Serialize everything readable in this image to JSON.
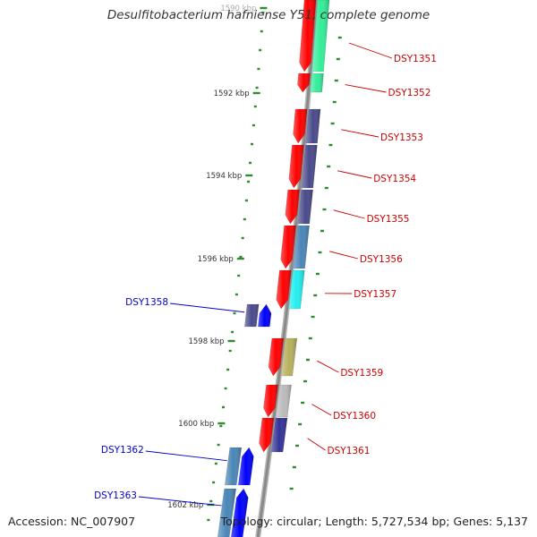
{
  "title": "Desulfitobacterium hafniense Y51, complete genome",
  "footer": {
    "accession": "Accession: NC_007907",
    "summary": "Topology: circular; Length: 5,727,534 bp; Genes: 5,137"
  },
  "colors": {
    "backbone": "#8a8a8a",
    "tick": "#2e8b2e",
    "forward_label": "#cc0000",
    "reverse_label": "#0000cc",
    "reverse_arrow": "#ff0000",
    "forward_arrow": "#0000ff"
  },
  "scale": {
    "ticks": [
      {
        "label": "1590 kbp"
      },
      {
        "label": "1592 kbp"
      },
      {
        "label": "1594 kbp"
      },
      {
        "label": "1596 kbp"
      },
      {
        "label": "1598 kbp"
      },
      {
        "label": "1600 kbp"
      },
      {
        "label": "1602 kbp"
      }
    ]
  },
  "genes": [
    {
      "id": "DSY1351",
      "strand": "forward",
      "cog_color": "#33ee99"
    },
    {
      "id": "DSY1352",
      "strand": "forward",
      "cog_color": "#33ee99"
    },
    {
      "id": "DSY1353",
      "strand": "forward",
      "cog_color": "#4a4a8c"
    },
    {
      "id": "DSY1354",
      "strand": "forward",
      "cog_color": "#4a4a8c"
    },
    {
      "id": "DSY1355",
      "strand": "forward",
      "cog_color": "#4a4a8c"
    },
    {
      "id": "DSY1356",
      "strand": "forward",
      "cog_color": "#4a86b8"
    },
    {
      "id": "DSY1357",
      "strand": "forward",
      "cog_color": "#22eeee"
    },
    {
      "id": "DSY1358",
      "strand": "reverse",
      "cog_color": "#4a4a8c"
    },
    {
      "id": "DSY1359",
      "strand": "forward",
      "cog_color": "#b8b060"
    },
    {
      "id": "DSY1360",
      "strand": "forward",
      "cog_color": "#bbbbbb"
    },
    {
      "id": "DSY1361",
      "strand": "forward",
      "cog_color": "#333399"
    },
    {
      "id": "DSY1362",
      "strand": "reverse",
      "cog_color": "#4a86b8"
    },
    {
      "id": "DSY1363",
      "strand": "reverse",
      "cog_color": "#4a86b8"
    }
  ]
}
